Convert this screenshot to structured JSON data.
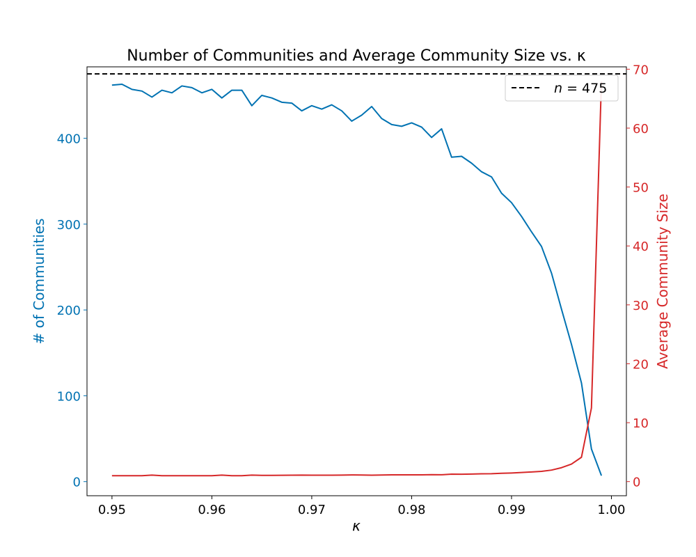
{
  "chart_data": {
    "type": "line",
    "title": "Number of Communities and Average Community Size vs. κ",
    "title_symbol_note": "",
    "xlabel": "κ",
    "ylabel_left": "# of Communities",
    "ylabel_right": "Average Community Size",
    "xlim": [
      0.9475,
      1.0015
    ],
    "ylim_left": [
      -16.45,
      483.25
    ],
    "ylim_right": [
      -2.4,
      70.4
    ],
    "x_ticks": [
      "0.95",
      "0.96",
      "0.97",
      "0.98",
      "0.99",
      "1.00"
    ],
    "y_left_ticks": [
      "0",
      "100",
      "200",
      "300",
      "400"
    ],
    "y_right_ticks": [
      "0",
      "10",
      "20",
      "30",
      "40",
      "50",
      "60",
      "70"
    ],
    "grid": false,
    "legend_placement": "top-right",
    "reference_line": {
      "label": "n = 475",
      "label_italic": "n",
      "label_rest": " = 475",
      "value": 475,
      "axis": "left",
      "color": "#000000"
    },
    "series": [
      {
        "name": "# of Communities",
        "axis": "left",
        "color": "#0072b2",
        "x": [
          0.95,
          0.951,
          0.952,
          0.953,
          0.954,
          0.955,
          0.956,
          0.957,
          0.958,
          0.959,
          0.96,
          0.961,
          0.962,
          0.963,
          0.964,
          0.965,
          0.966,
          0.967,
          0.968,
          0.969,
          0.97,
          0.971,
          0.972,
          0.973,
          0.974,
          0.975,
          0.976,
          0.977,
          0.978,
          0.979,
          0.98,
          0.981,
          0.982,
          0.983,
          0.984,
          0.985,
          0.986,
          0.987,
          0.988,
          0.989,
          0.99,
          0.991,
          0.992,
          0.993,
          0.994,
          0.995,
          0.996,
          0.997,
          0.998,
          0.999
        ],
        "values": [
          462,
          463,
          457,
          455,
          448,
          456,
          453,
          461,
          459,
          453,
          457,
          447,
          456,
          456,
          438,
          450,
          447,
          442,
          441,
          432,
          438,
          434,
          439,
          432,
          420,
          427,
          437,
          423,
          416,
          414,
          418,
          413,
          401,
          411,
          378,
          379,
          371,
          361,
          355,
          336,
          325,
          309,
          291,
          274,
          243,
          201,
          160,
          115,
          38,
          7
        ]
      },
      {
        "name": "Average Community Size",
        "axis": "right",
        "color": "#d62728",
        "x": [
          0.95,
          0.951,
          0.952,
          0.953,
          0.954,
          0.955,
          0.956,
          0.957,
          0.958,
          0.959,
          0.96,
          0.961,
          0.962,
          0.963,
          0.964,
          0.965,
          0.966,
          0.967,
          0.968,
          0.969,
          0.97,
          0.971,
          0.972,
          0.973,
          0.974,
          0.975,
          0.976,
          0.977,
          0.978,
          0.979,
          0.98,
          0.981,
          0.982,
          0.983,
          0.984,
          0.985,
          0.986,
          0.987,
          0.988,
          0.989,
          0.99,
          0.991,
          0.992,
          0.993,
          0.994,
          0.995,
          0.996,
          0.997,
          0.998,
          0.999
        ],
        "values": [
          1.0,
          1.0,
          1.0,
          1.0,
          1.1,
          1.0,
          1.0,
          1.0,
          1.0,
          1.0,
          1.0,
          1.1,
          1.0,
          1.0,
          1.1,
          1.05,
          1.06,
          1.07,
          1.08,
          1.1,
          1.08,
          1.09,
          1.08,
          1.1,
          1.13,
          1.11,
          1.09,
          1.12,
          1.14,
          1.15,
          1.14,
          1.15,
          1.18,
          1.16,
          1.26,
          1.25,
          1.28,
          1.32,
          1.34,
          1.41,
          1.46,
          1.54,
          1.63,
          1.73,
          1.95,
          2.36,
          2.97,
          4.13,
          12.5,
          67.9
        ]
      }
    ]
  }
}
